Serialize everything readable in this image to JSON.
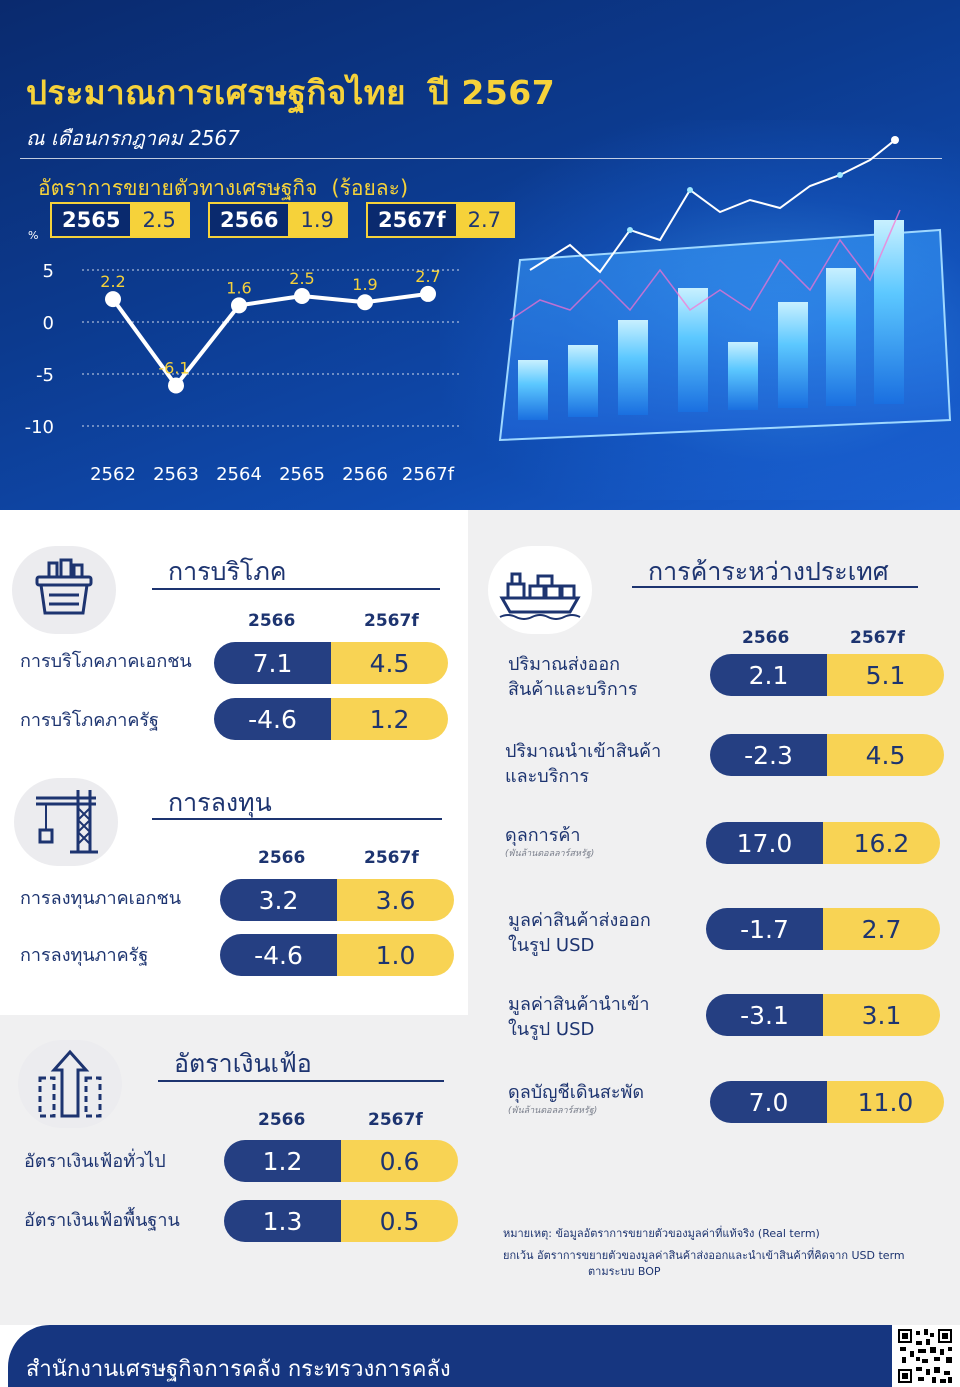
{
  "header": {
    "title": "ประมาณการเศรษฐกิจไทย",
    "title_year": "ปี 2567",
    "subtitle": "ณ เดือนกรกฎาคม 2567",
    "growth_title": "อัตราการขยายตัวทางเศรษฐกิจ",
    "growth_unit": "(ร้อยละ)",
    "boxes": [
      {
        "year": "2565",
        "value": "2.5"
      },
      {
        "year": "2566",
        "value": "1.9"
      },
      {
        "year": "2567f",
        "value": "2.7"
      }
    ]
  },
  "chart_data": {
    "type": "line",
    "title": "อัตราการขยายตัวทางเศรษฐกิจ (ร้อยละ)",
    "ylabel": "%",
    "categories": [
      "2562",
      "2563",
      "2564",
      "2565",
      "2566",
      "2567f"
    ],
    "values": [
      2.2,
      -6.1,
      1.6,
      2.5,
      1.9,
      2.7
    ],
    "labels": [
      "2.2",
      "-6.1",
      "1.6",
      "2.5",
      "1.9",
      "2.7"
    ],
    "yticks": [
      5,
      0,
      -5,
      -10
    ],
    "ytick_labels": [
      "5",
      "0",
      "-5",
      "-10"
    ],
    "ylim": [
      -10,
      5
    ],
    "grid": true,
    "colors": {
      "line": "#ffffff",
      "labels": "#f6d23a",
      "axis_text": "#ffffff"
    }
  },
  "consumption": {
    "title": "การบริโภค",
    "col1": "2566",
    "col2": "2567f",
    "rows": [
      {
        "label": "การบริโภคภาคเอกชน",
        "v1": "7.1",
        "v2": "4.5"
      },
      {
        "label": "การบริโภคภาครัฐ",
        "v1": "-4.6",
        "v2": "1.2"
      }
    ]
  },
  "investment": {
    "title": "การลงทุน",
    "col1": "2566",
    "col2": "2567f",
    "rows": [
      {
        "label": "การลงทุนภาคเอกชน",
        "v1": "3.2",
        "v2": "3.6"
      },
      {
        "label": "การลงทุนภาครัฐ",
        "v1": "-4.6",
        "v2": "1.0"
      }
    ]
  },
  "inflation": {
    "title": "อัตราเงินเฟ้อ",
    "col1": "2566",
    "col2": "2567f",
    "rows": [
      {
        "label": "อัตราเงินเฟ้อทั่วไป",
        "v1": "1.2",
        "v2": "0.6"
      },
      {
        "label": "อัตราเงินเฟ้อพื้นฐาน",
        "v1": "1.3",
        "v2": "0.5"
      }
    ]
  },
  "trade": {
    "title": "การค้าระหว่างประเทศ",
    "col1": "2566",
    "col2": "2567f",
    "rows": [
      {
        "label1": "ปริมาณส่งออก",
        "label2": "สินค้าและบริการ",
        "note": "",
        "v1": "2.1",
        "v2": "5.1"
      },
      {
        "label1": "ปริมาณนำเข้าสินค้า",
        "label2": "และบริการ",
        "note": "",
        "v1": "-2.3",
        "v2": "4.5"
      },
      {
        "label1": "ดุลการค้า",
        "label2": "",
        "note": "(พันล้านดอลลาร์สหรัฐ)",
        "v1": "17.0",
        "v2": "16.2"
      },
      {
        "label1": "มูลค่าสินค้าส่งออก",
        "label2": "ในรูป USD",
        "note": "",
        "v1": "-1.7",
        "v2": "2.7"
      },
      {
        "label1": "มูลค่าสินค้านำเข้า",
        "label2": "ในรูป USD",
        "note": "",
        "v1": "-3.1",
        "v2": "3.1"
      },
      {
        "label1": "ดุลบัญชีเดินสะพัด",
        "label2": "",
        "note": "(พันล้านดอลลาร์สหรัฐ)",
        "v1": "7.0",
        "v2": "11.0"
      }
    ],
    "note1": "หมายเหตุ: ข้อมูลอัตราการขยายตัวของมูลค่าที่แท้จริง (Real term)",
    "note2": "ยกเว้น อัตราการขยายตัวของมูลค่าสินค้าส่งออกและนำเข้าสินค้าที่คิดจาก USD term",
    "note3": "ตามระบบ BOP"
  },
  "footer": {
    "text": "สำนักงานเศรษฐกิจการคลัง กระทรวงการคลัง"
  }
}
